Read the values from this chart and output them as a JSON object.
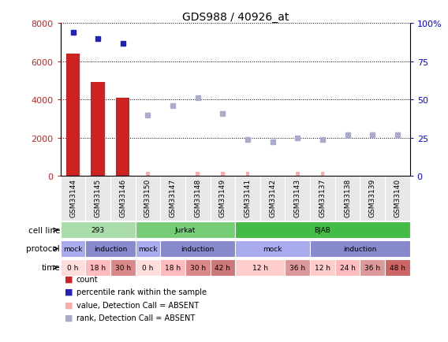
{
  "title": "GDS988 / 40926_at",
  "samples": [
    "GSM33144",
    "GSM33145",
    "GSM33146",
    "GSM33150",
    "GSM33147",
    "GSM33148",
    "GSM33149",
    "GSM33141",
    "GSM33142",
    "GSM33143",
    "GSM33137",
    "GSM33138",
    "GSM33139",
    "GSM33140"
  ],
  "red_bar_heights": [
    6400,
    4900,
    4100,
    0,
    0,
    0,
    0,
    0,
    0,
    0,
    0,
    0,
    0,
    0
  ],
  "absent_value_heights": [
    0,
    0,
    0,
    120,
    0,
    200,
    240,
    120,
    0,
    120,
    120,
    0,
    0,
    0
  ],
  "percentile_present_vals": [
    94,
    90,
    87,
    null,
    null,
    null,
    null,
    null,
    null,
    null,
    null,
    null,
    null,
    null
  ],
  "absent_rank_vals": [
    null,
    null,
    null,
    40,
    46,
    51,
    41,
    24,
    22,
    25,
    24,
    27,
    27,
    27
  ],
  "cell_line_groups": [
    {
      "label": "293",
      "start": 0,
      "end": 3,
      "color": "#aaddaa"
    },
    {
      "label": "Jurkat",
      "start": 3,
      "end": 7,
      "color": "#77cc77"
    },
    {
      "label": "BJAB",
      "start": 7,
      "end": 14,
      "color": "#44bb44"
    }
  ],
  "protocol_groups": [
    {
      "label": "mock",
      "start": 0,
      "end": 1,
      "color": "#aaaaee"
    },
    {
      "label": "induction",
      "start": 1,
      "end": 3,
      "color": "#8888cc"
    },
    {
      "label": "mock",
      "start": 3,
      "end": 4,
      "color": "#aaaaee"
    },
    {
      "label": "induction",
      "start": 4,
      "end": 7,
      "color": "#8888cc"
    },
    {
      "label": "mock",
      "start": 7,
      "end": 10,
      "color": "#aaaaee"
    },
    {
      "label": "induction",
      "start": 10,
      "end": 14,
      "color": "#8888cc"
    }
  ],
  "time_groups": [
    {
      "label": "0 h",
      "start": 0,
      "end": 1,
      "color": "#ffdddd"
    },
    {
      "label": "18 h",
      "start": 1,
      "end": 2,
      "color": "#ffbbbb"
    },
    {
      "label": "30 h",
      "start": 2,
      "end": 3,
      "color": "#dd8888"
    },
    {
      "label": "0 h",
      "start": 3,
      "end": 4,
      "color": "#ffdddd"
    },
    {
      "label": "18 h",
      "start": 4,
      "end": 5,
      "color": "#ffbbbb"
    },
    {
      "label": "30 h",
      "start": 5,
      "end": 6,
      "color": "#dd8888"
    },
    {
      "label": "42 h",
      "start": 6,
      "end": 7,
      "color": "#cc7777"
    },
    {
      "label": "12 h",
      "start": 7,
      "end": 9,
      "color": "#ffcccc"
    },
    {
      "label": "36 h",
      "start": 9,
      "end": 10,
      "color": "#dd9999"
    },
    {
      "label": "12 h",
      "start": 10,
      "end": 11,
      "color": "#ffcccc"
    },
    {
      "label": "24 h",
      "start": 11,
      "end": 12,
      "color": "#ffbbbb"
    },
    {
      "label": "36 h",
      "start": 12,
      "end": 13,
      "color": "#dd9999"
    },
    {
      "label": "48 h",
      "start": 13,
      "end": 14,
      "color": "#cc6666"
    }
  ],
  "ylim_left": [
    0,
    8000
  ],
  "ylim_right": [
    0,
    100
  ],
  "yticks_left": [
    0,
    2000,
    4000,
    6000,
    8000
  ],
  "yticks_right": [
    0,
    25,
    50,
    75,
    100
  ],
  "color_red": "#cc2222",
  "color_blue": "#2222bb",
  "color_absent_value": "#ffaaaa",
  "color_absent_rank": "#aaaacc",
  "bg_color": "#ffffff",
  "absent_value_small": [
    0,
    0,
    0,
    1,
    0,
    1,
    1,
    1,
    0,
    1,
    1,
    0,
    0,
    0
  ]
}
